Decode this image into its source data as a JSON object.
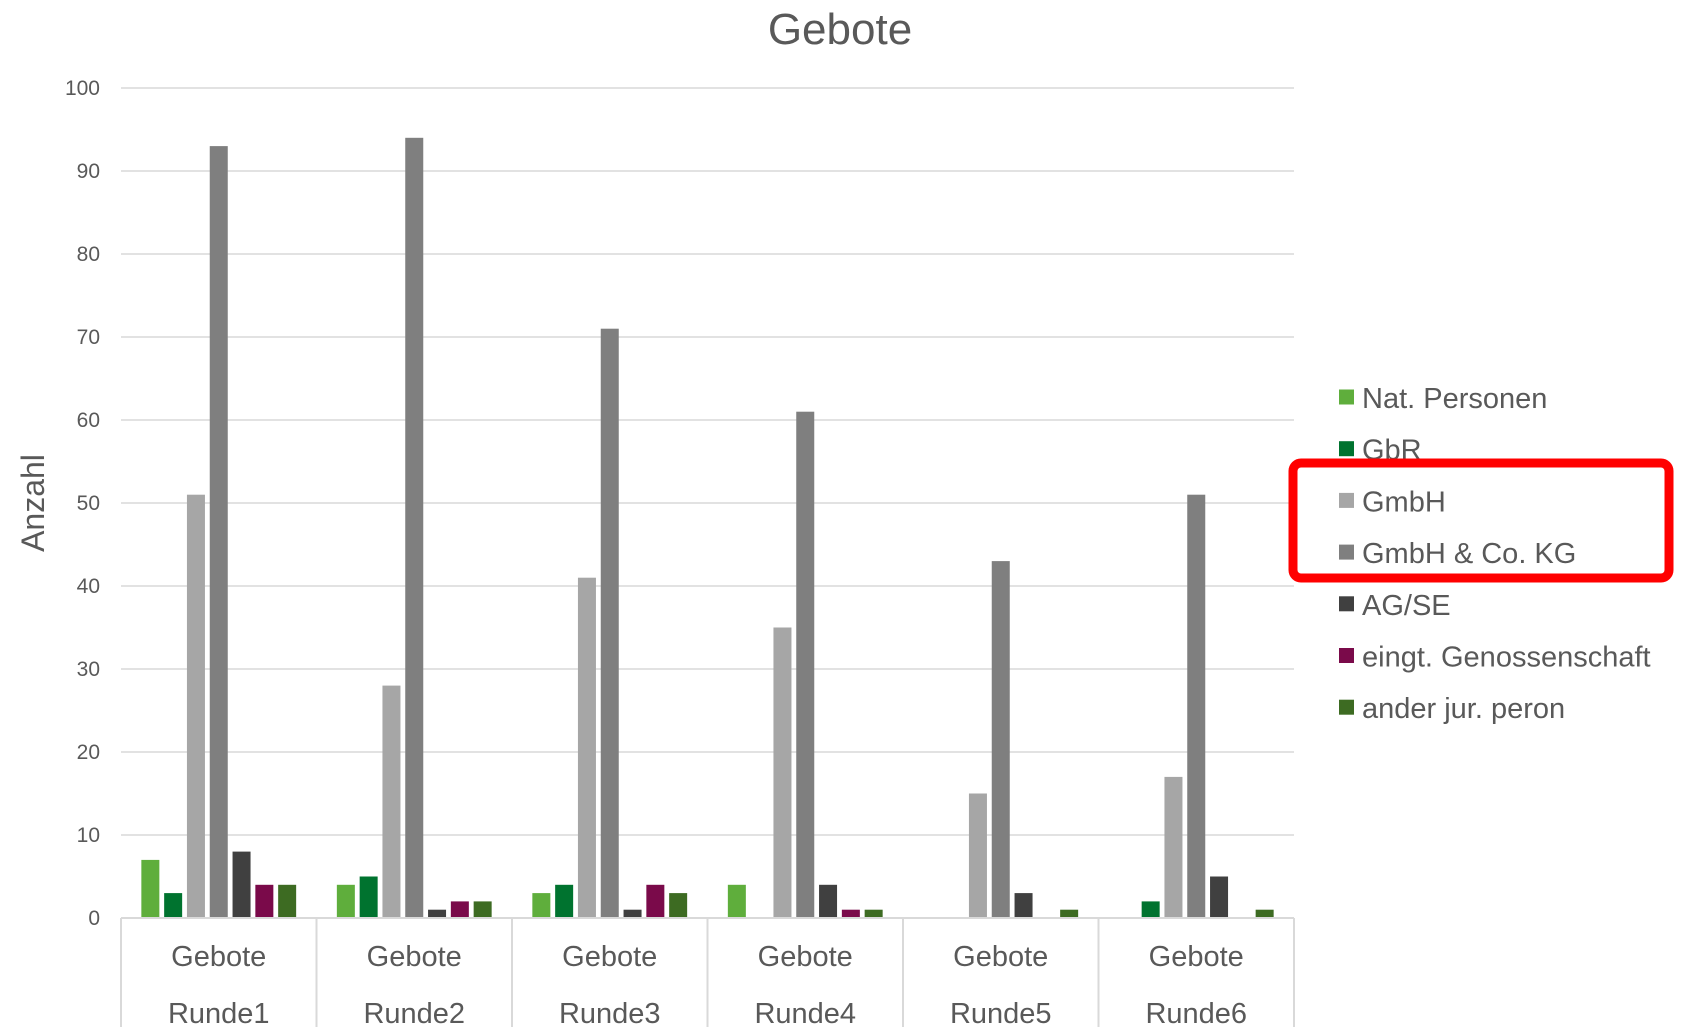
{
  "chart_data": {
    "type": "bar",
    "title": "Gebote",
    "xlabel": "",
    "ylabel": "Anzahl",
    "ylim": [
      0,
      100
    ],
    "yticks": [
      0,
      10,
      20,
      30,
      40,
      50,
      60,
      70,
      80,
      90,
      100
    ],
    "grid": true,
    "legend_position": "right",
    "categories": [
      {
        "top": "Gebote",
        "bottom": "Runde1"
      },
      {
        "top": "Gebote",
        "bottom": "Runde2"
      },
      {
        "top": "Gebote",
        "bottom": "Runde3"
      },
      {
        "top": "Gebote",
        "bottom": "Runde4"
      },
      {
        "top": "Gebote",
        "bottom": "Runde5"
      },
      {
        "top": "Gebote",
        "bottom": "Runde6"
      }
    ],
    "series": [
      {
        "name": "Nat. Personen",
        "color": "#5fae3c",
        "values": [
          7,
          4,
          3,
          4,
          0,
          0
        ]
      },
      {
        "name": "GbR",
        "color": "#00732f",
        "values": [
          3,
          5,
          4,
          0,
          0,
          2
        ]
      },
      {
        "name": "GmbH",
        "color": "#a6a6a6",
        "values": [
          51,
          28,
          41,
          35,
          15,
          17
        ]
      },
      {
        "name": "GmbH & Co. KG",
        "color": "#7f7f7f",
        "values": [
          93,
          94,
          71,
          61,
          43,
          51
        ]
      },
      {
        "name": "AG/SE",
        "color": "#404040",
        "values": [
          8,
          1,
          1,
          4,
          3,
          5
        ]
      },
      {
        "name": "eingt. Genossenschaft",
        "color": "#7a0a4a",
        "values": [
          4,
          2,
          4,
          1,
          0,
          0
        ]
      },
      {
        "name": "ander jur. peron",
        "color": "#3d6b22",
        "values": [
          4,
          2,
          3,
          1,
          1,
          1
        ]
      }
    ],
    "highlight": {
      "series": [
        "GmbH",
        "GmbH & Co. KG"
      ],
      "color": "#ff0000"
    }
  }
}
